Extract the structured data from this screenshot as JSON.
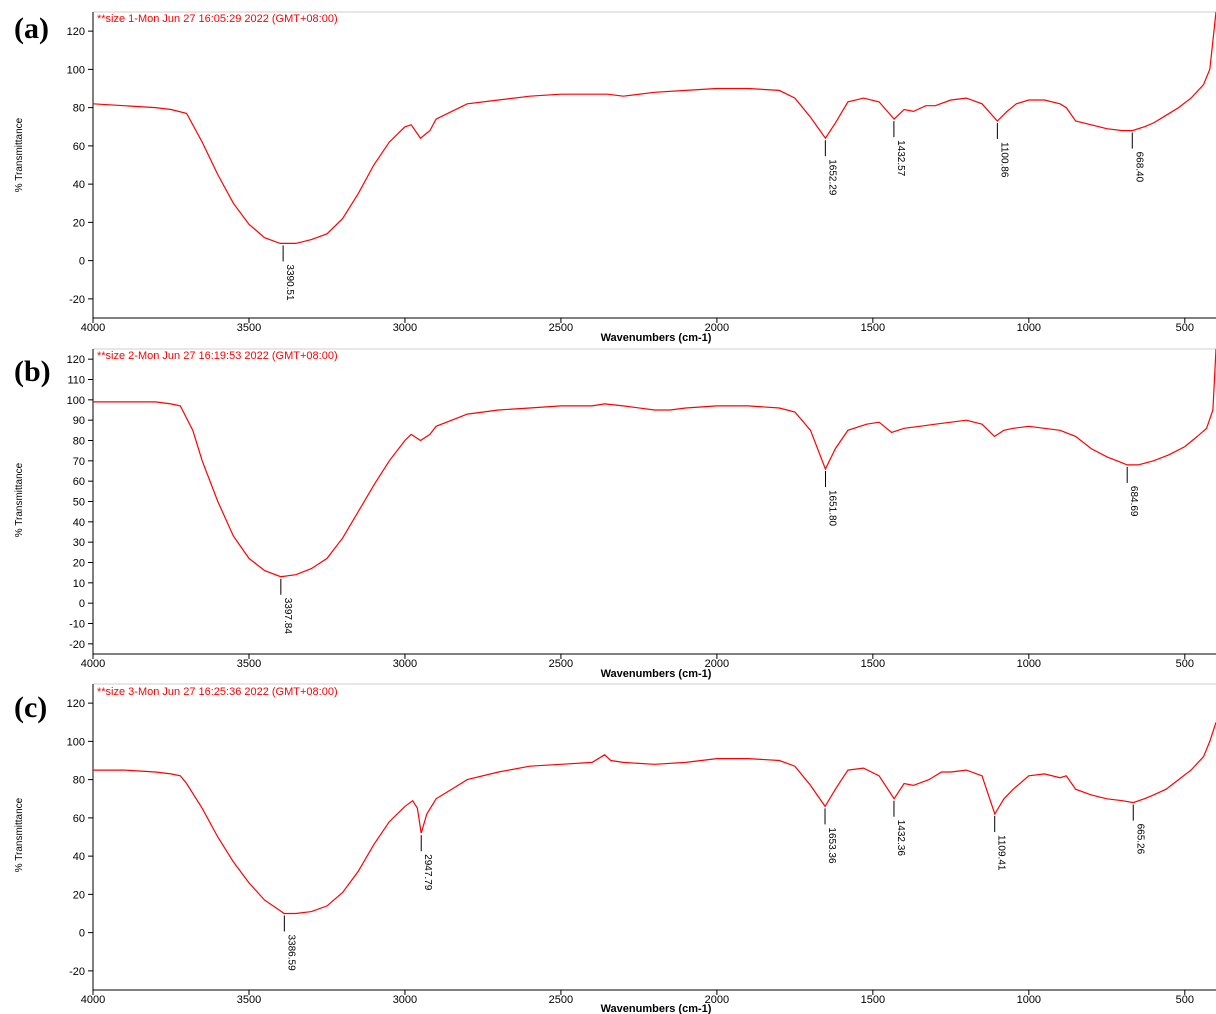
{
  "chart_data": [
    {
      "type": "line",
      "panel_label": "(a)",
      "header": "**size 1-Mon Jun 27 16:05:29 2022 (GMT+08:00)",
      "xlabel": "Wavenumbers (cm-1)",
      "ylabel": "% Transmittance",
      "xlim": [
        4000,
        400
      ],
      "ylim": [
        -30,
        130
      ],
      "x_ticks": [
        4000,
        3500,
        3000,
        2500,
        2000,
        1500,
        1000,
        500
      ],
      "y_ticks": [
        -20,
        0,
        20,
        40,
        60,
        80,
        100,
        120
      ],
      "line_color": "#ff0000",
      "series": [
        {
          "x": [
            4000,
            3900,
            3800,
            3750,
            3700,
            3650,
            3600,
            3550,
            3500,
            3450,
            3400,
            3350,
            3300,
            3250,
            3200,
            3150,
            3100,
            3050,
            3000,
            2980,
            2950,
            2920,
            2900,
            2850,
            2800,
            2700,
            2600,
            2500,
            2400,
            2350,
            2300,
            2200,
            2100,
            2000,
            1900,
            1800,
            1750,
            1700,
            1652,
            1620,
            1580,
            1530,
            1480,
            1432,
            1400,
            1370,
            1330,
            1300,
            1250,
            1200,
            1150,
            1101,
            1070,
            1040,
            1000,
            950,
            900,
            880,
            850,
            800,
            750,
            700,
            668,
            630,
            600,
            560,
            520,
            480,
            440,
            420,
            410,
            400
          ],
          "y": [
            82,
            81,
            80,
            79,
            77,
            62,
            45,
            30,
            19,
            12,
            9,
            9,
            11,
            14,
            22,
            35,
            50,
            62,
            70,
            71,
            64,
            68,
            74,
            78,
            82,
            84,
            86,
            87,
            87,
            87,
            86,
            88,
            89,
            90,
            90,
            89,
            85,
            75,
            64,
            72,
            83,
            85,
            83,
            74,
            79,
            78,
            81,
            81,
            84,
            85,
            82,
            73,
            78,
            82,
            84,
            84,
            82,
            80,
            73,
            71,
            69,
            68,
            68,
            70,
            72,
            76,
            80,
            85,
            92,
            100,
            115,
            130
          ]
        }
      ],
      "annotations": [
        {
          "x": 3390.51,
          "y": 9,
          "label": "3390.51"
        },
        {
          "x": 1652.29,
          "y": 64,
          "label": "1652.29"
        },
        {
          "x": 1432.57,
          "y": 74,
          "label": "1432.57"
        },
        {
          "x": 1100.86,
          "y": 73,
          "label": "1100.86"
        },
        {
          "x": 668.4,
          "y": 68,
          "label": "668.40"
        }
      ]
    },
    {
      "type": "line",
      "panel_label": "(b)",
      "header": "**size 2-Mon Jun 27 16:19:53 2022 (GMT+08:00)",
      "xlabel": "Wavenumbers (cm-1)",
      "ylabel": "% Transmittance",
      "xlim": [
        4000,
        400
      ],
      "ylim": [
        -25,
        125
      ],
      "x_ticks": [
        4000,
        3500,
        3000,
        2500,
        2000,
        1500,
        1000,
        500
      ],
      "y_ticks": [
        -20,
        -10,
        0,
        10,
        20,
        30,
        40,
        50,
        60,
        70,
        80,
        90,
        100,
        110,
        120
      ],
      "line_color": "#ff0000",
      "series": [
        {
          "x": [
            4000,
            3900,
            3800,
            3750,
            3720,
            3680,
            3650,
            3600,
            3550,
            3500,
            3450,
            3398,
            3350,
            3300,
            3250,
            3200,
            3150,
            3100,
            3050,
            3000,
            2980,
            2950,
            2920,
            2900,
            2850,
            2800,
            2700,
            2600,
            2500,
            2400,
            2360,
            2300,
            2200,
            2150,
            2100,
            2000,
            1950,
            1900,
            1800,
            1750,
            1700,
            1652,
            1620,
            1580,
            1520,
            1480,
            1440,
            1400,
            1350,
            1300,
            1250,
            1200,
            1150,
            1110,
            1080,
            1050,
            1000,
            950,
            900,
            850,
            800,
            750,
            700,
            685,
            650,
            600,
            550,
            500,
            460,
            430,
            410,
            400
          ],
          "y": [
            99,
            99,
            99,
            98,
            97,
            85,
            70,
            50,
            33,
            22,
            16,
            13,
            14,
            17,
            22,
            32,
            45,
            58,
            70,
            80,
            83,
            80,
            83,
            87,
            90,
            93,
            95,
            96,
            97,
            97,
            98,
            97,
            95,
            95,
            96,
            97,
            97,
            97,
            96,
            94,
            85,
            66,
            76,
            85,
            88,
            89,
            84,
            86,
            87,
            88,
            89,
            90,
            88,
            82,
            85,
            86,
            87,
            86,
            85,
            82,
            76,
            72,
            69,
            68,
            68,
            70,
            73,
            77,
            82,
            86,
            95,
            125
          ]
        }
      ],
      "annotations": [
        {
          "x": 3397.84,
          "y": 13,
          "label": "3397.84"
        },
        {
          "x": 1651.8,
          "y": 66,
          "label": "1651.80"
        },
        {
          "x": 684.69,
          "y": 68,
          "label": "684.69"
        }
      ]
    },
    {
      "type": "line",
      "panel_label": "(c)",
      "header": "**size 3-Mon Jun 27 16:25:36 2022 (GMT+08:00)",
      "xlabel": "Wavenumbers (cm-1)",
      "ylabel": "% Transmittance",
      "xlim": [
        4000,
        400
      ],
      "ylim": [
        -30,
        130
      ],
      "x_ticks": [
        4000,
        3500,
        3000,
        2500,
        2000,
        1500,
        1000,
        500
      ],
      "y_ticks": [
        -20,
        0,
        20,
        40,
        60,
        80,
        100,
        120
      ],
      "line_color": "#ff0000",
      "series": [
        {
          "x": [
            4000,
            3900,
            3800,
            3750,
            3720,
            3700,
            3650,
            3600,
            3550,
            3500,
            3450,
            3387,
            3350,
            3300,
            3250,
            3200,
            3150,
            3100,
            3050,
            3000,
            2975,
            2960,
            2948,
            2930,
            2900,
            2850,
            2800,
            2700,
            2600,
            2500,
            2400,
            2360,
            2340,
            2300,
            2200,
            2100,
            2000,
            1900,
            1800,
            1750,
            1700,
            1653,
            1620,
            1580,
            1530,
            1480,
            1432,
            1400,
            1370,
            1320,
            1280,
            1250,
            1200,
            1150,
            1109,
            1080,
            1050,
            1000,
            950,
            900,
            880,
            850,
            800,
            750,
            700,
            665,
            630,
            600,
            560,
            520,
            480,
            440,
            420,
            400
          ],
          "y": [
            85,
            85,
            84,
            83,
            82,
            78,
            65,
            50,
            37,
            26,
            17,
            10,
            10,
            11,
            14,
            21,
            32,
            46,
            58,
            66,
            69,
            65,
            52,
            62,
            70,
            75,
            80,
            84,
            87,
            88,
            89,
            93,
            90,
            89,
            88,
            89,
            91,
            91,
            90,
            87,
            77,
            66,
            75,
            85,
            86,
            82,
            70,
            78,
            77,
            80,
            84,
            84,
            85,
            82,
            62,
            70,
            75,
            82,
            83,
            81,
            82,
            75,
            72,
            70,
            69,
            68,
            70,
            72,
            75,
            80,
            85,
            92,
            100,
            110
          ]
        }
      ],
      "annotations": [
        {
          "x": 3386.59,
          "y": 10,
          "label": "3386.59"
        },
        {
          "x": 2947.79,
          "y": 52,
          "label": "2947.79"
        },
        {
          "x": 1653.36,
          "y": 66,
          "label": "1653.36"
        },
        {
          "x": 1432.36,
          "y": 70,
          "label": "1432.36"
        },
        {
          "x": 1109.41,
          "y": 62,
          "label": "1109.41"
        },
        {
          "x": 665.26,
          "y": 68,
          "label": "665.26"
        }
      ]
    }
  ]
}
